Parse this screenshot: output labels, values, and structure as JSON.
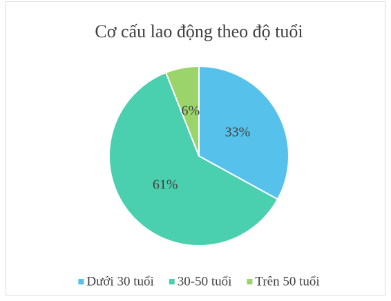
{
  "chart_data": {
    "type": "pie",
    "title": "Cơ cấu lao động theo độ tuổi",
    "categories": [
      "Dưới 30 tuổi",
      "30-50 tuổi",
      "Trên 50 tuổi"
    ],
    "values": [
      33,
      61,
      6
    ],
    "value_labels": [
      "33%",
      "61%",
      "6%"
    ],
    "colors": [
      "#56c1ea",
      "#4ad0ae",
      "#9bd46b"
    ],
    "legend": "bottom"
  }
}
